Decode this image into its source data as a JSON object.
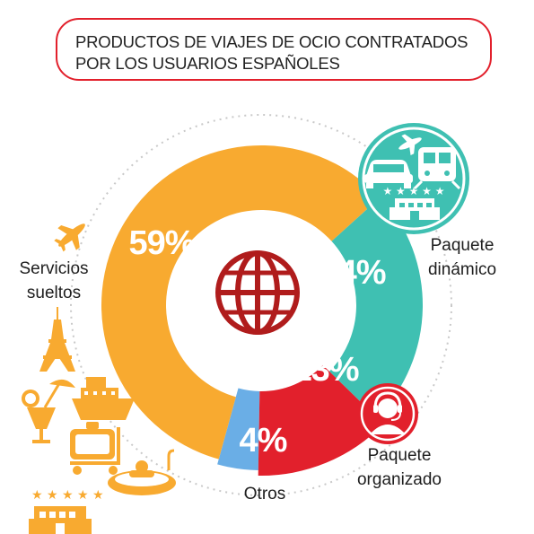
{
  "title": {
    "line1": "PRODUCTOS DE VIAJES DE OCIO CONTRATADOS",
    "line2": "POR LOS USUARIOS ESPAÑOLES"
  },
  "colors": {
    "accent_red": "#e2202c",
    "servicios": "#f8aa30",
    "dinamico": "#3fc0b2",
    "organizado": "#e2202c",
    "otros": "#6aaee6",
    "globe": "#b01c1c"
  },
  "chart_data": {
    "type": "pie",
    "title": "PRODUCTOS DE VIAJES DE OCIO CONTRATADOS POR LOS USUARIOS ESPAÑOLES",
    "categories": [
      "Servicios sueltos",
      "Paquete dinámico",
      "Paquete organizado",
      "Otros"
    ],
    "values": [
      59,
      24,
      13,
      4
    ],
    "value_labels": [
      "59%",
      "24%",
      "13%",
      "4%"
    ],
    "category_labels": [
      [
        "Servicios",
        "sueltos"
      ],
      [
        "Paquete",
        "dinámico"
      ],
      [
        "Paquete",
        "organizado"
      ],
      [
        "Otros"
      ]
    ],
    "icons": [
      "globe-icon",
      "plane-icon",
      "eiffel-tower-icon",
      "cruise-ship-icon",
      "cocktail-icon",
      "luggage-cart-icon",
      "pool-icon",
      "hotel-icon",
      "car-icon",
      "train-icon",
      "operator-headset-icon"
    ]
  }
}
